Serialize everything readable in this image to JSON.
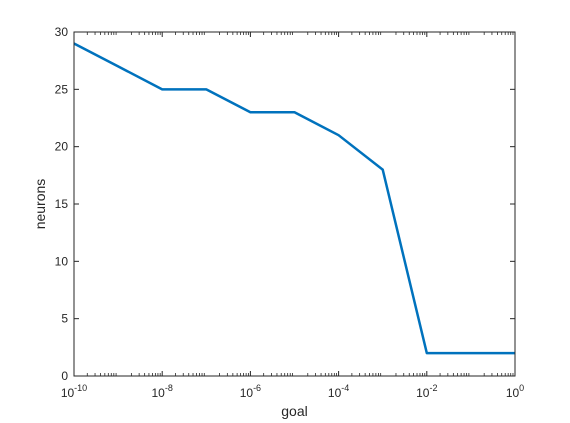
{
  "chart_data": {
    "type": "line",
    "xscale": "log",
    "xlabel": "goal",
    "ylabel": "neurons",
    "xlim": [
      1e-10,
      1
    ],
    "ylim": [
      0,
      30
    ],
    "grid": false,
    "x_ticks": [
      {
        "base": "10",
        "exp": "-10"
      },
      {
        "base": "10",
        "exp": "-8"
      },
      {
        "base": "10",
        "exp": "-6"
      },
      {
        "base": "10",
        "exp": "-4"
      },
      {
        "base": "10",
        "exp": "-2"
      },
      {
        "base": "10",
        "exp": "0"
      }
    ],
    "y_ticks": [
      "0",
      "5",
      "10",
      "15",
      "20",
      "25",
      "30"
    ],
    "series": [
      {
        "color": "#0072BD",
        "x": [
          1e-10,
          1e-09,
          1e-08,
          1e-07,
          1e-06,
          1e-05,
          0.0001,
          0.001,
          0.01,
          0.1,
          1
        ],
        "y": [
          29,
          27,
          25,
          25,
          23,
          23,
          21,
          18,
          2,
          2,
          2
        ]
      }
    ]
  }
}
